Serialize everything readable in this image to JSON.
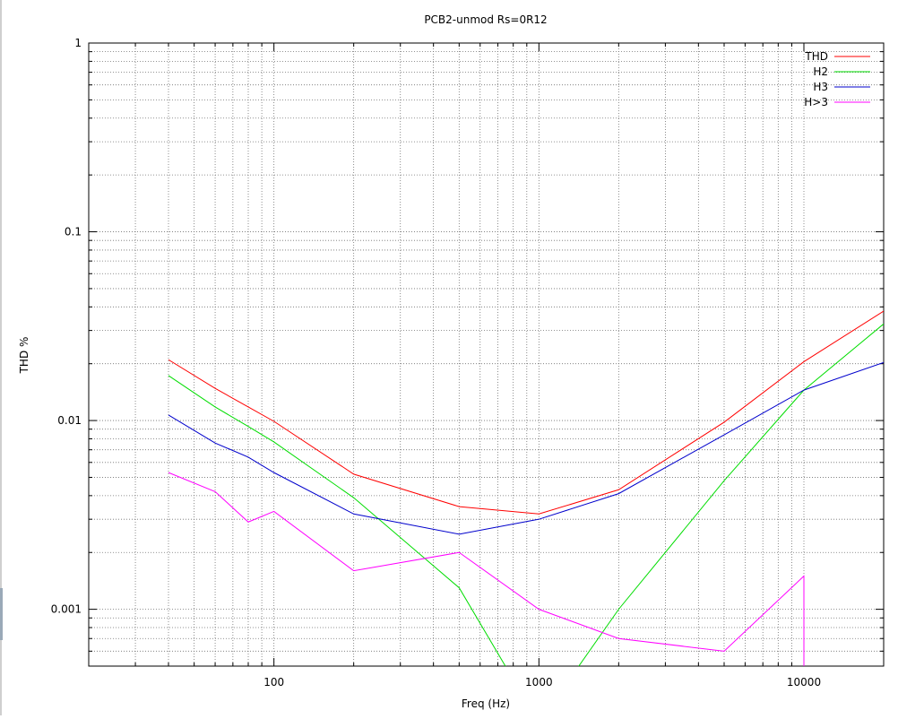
{
  "chart_data": {
    "type": "line",
    "title": "PCB2-unmod  Rs=0R12",
    "xlabel": "Freq (Hz)",
    "ylabel": "THD %",
    "xscale": "log",
    "yscale": "log",
    "xlim": [
      20,
      20000
    ],
    "ylim": [
      0.0005,
      1
    ],
    "grid": true,
    "legend_position": "top-right",
    "x_tick_labels": [
      "100",
      "1000",
      "10000"
    ],
    "x_tick_values": [
      100,
      1000,
      10000
    ],
    "y_tick_labels": [
      "1",
      "0.1",
      "0.01",
      "0.001"
    ],
    "y_tick_values": [
      1,
      0.1,
      0.01,
      0.001
    ],
    "series": [
      {
        "name": "THD",
        "color": "#ff0000",
        "x": [
          40,
          60,
          80,
          100,
          200,
          500,
          1000,
          2000,
          5000,
          10000,
          20000
        ],
        "y": [
          0.021,
          0.0148,
          0.0118,
          0.0099,
          0.0052,
          0.0035,
          0.0032,
          0.0043,
          0.0098,
          0.0205,
          0.038
        ]
      },
      {
        "name": "H2",
        "color": "#00dd00",
        "x": [
          40,
          60,
          80,
          100,
          200,
          500,
          1000,
          2000,
          5000,
          10000,
          20000
        ],
        "y": [
          0.0173,
          0.0118,
          0.0093,
          0.0077,
          0.0039,
          0.0013,
          0.00025,
          0.001,
          0.0048,
          0.0145,
          0.0325
        ]
      },
      {
        "name": "H3",
        "color": "#0000cc",
        "x": [
          40,
          60,
          80,
          100,
          200,
          500,
          1000,
          2000,
          5000,
          10000,
          20000
        ],
        "y": [
          0.0107,
          0.0076,
          0.0064,
          0.0053,
          0.0032,
          0.0025,
          0.003,
          0.0041,
          0.0084,
          0.0145,
          0.0203
        ]
      },
      {
        "name": "H>3",
        "color": "#ff00ff",
        "x": [
          40,
          60,
          80,
          100,
          200,
          500,
          1000,
          2000,
          5000,
          10000,
          10000
        ],
        "y": [
          0.0053,
          0.0042,
          0.0029,
          0.0033,
          0.0016,
          0.002,
          0.001,
          0.0007,
          0.0006,
          0.0015,
          0.0003
        ]
      }
    ]
  }
}
